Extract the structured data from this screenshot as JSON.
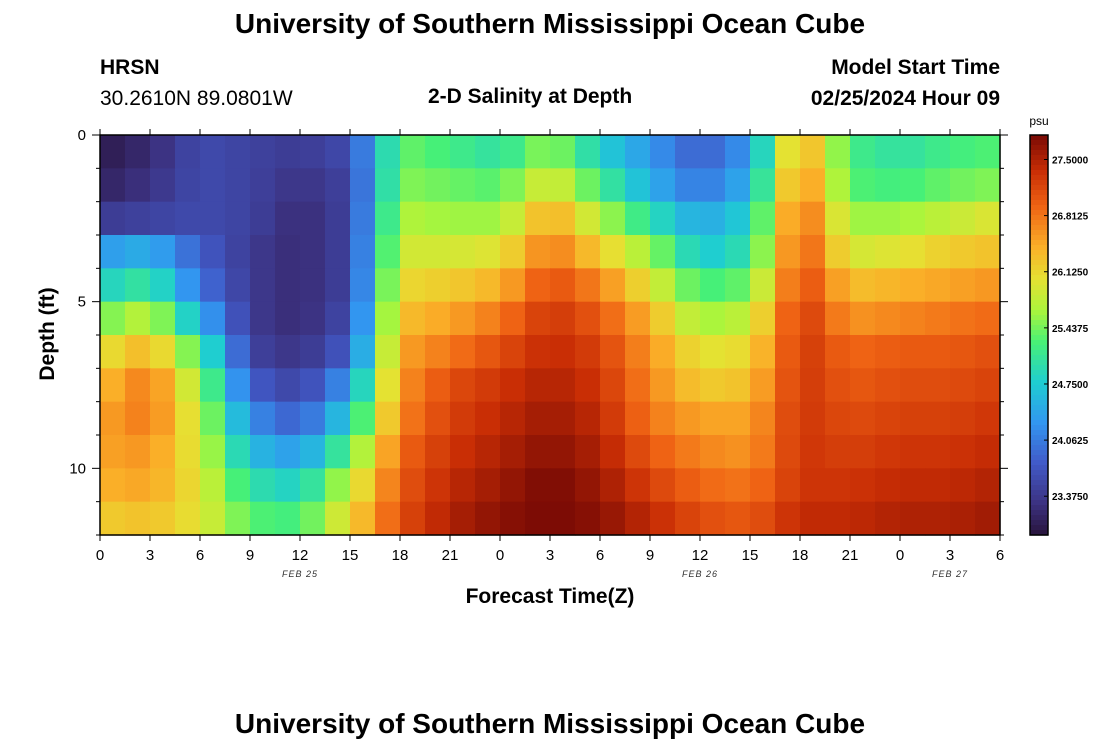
{
  "page": {
    "title": "University of Southern Mississippi Ocean Cube",
    "title_repeat": "University of Southern Mississippi Ocean Cube",
    "station": "HRSN",
    "coords": "30.2610N  89.0801W",
    "plot_title": "2-D Salinity at Depth",
    "model_start_label": "Model Start Time",
    "model_start_value": "02/25/2024 Hour 09"
  },
  "chart_data": {
    "type": "heatmap",
    "title": "2-D Salinity at Depth",
    "xlabel": "Forecast Time(Z)",
    "ylabel": "Depth (ft)",
    "x_hours_range": [
      0,
      54
    ],
    "x_tick_labels": [
      "0",
      "3",
      "6",
      "9",
      "12",
      "15",
      "18",
      "21",
      "0",
      "3",
      "6",
      "9",
      "12",
      "15",
      "18",
      "21",
      "0",
      "3",
      "6"
    ],
    "date_labels": [
      {
        "text": "FEB 25",
        "hour": 12
      },
      {
        "text": "FEB 26",
        "hour": 36
      },
      {
        "text": "FEB 27",
        "hour": 51
      }
    ],
    "y_depth_range": [
      0,
      12
    ],
    "y_tick_labels": [
      {
        "text": "0",
        "depth": 0
      },
      {
        "text": "5",
        "depth": 5
      },
      {
        "text": "10",
        "depth": 10
      }
    ],
    "y_minor_ticks": [
      1,
      2,
      3,
      4,
      6,
      7,
      8,
      9,
      11,
      12
    ],
    "colorbar": {
      "unit": "psu",
      "min": 22.9,
      "max": 27.8,
      "labels": [
        "27.5000",
        "26.8125",
        "26.1250",
        "25.4375",
        "24.7500",
        "24.0625",
        "23.3750"
      ],
      "label_values": [
        27.5,
        26.8125,
        26.125,
        25.4375,
        24.75,
        24.0625,
        23.375
      ]
    },
    "depth_levels": [
      0.5,
      1.5,
      2.5,
      3.5,
      4.5,
      5.5,
      6.5,
      7.5,
      8.5,
      9.5,
      10.5,
      11.5
    ],
    "time_hours": [
      0,
      3,
      6,
      9,
      12,
      15,
      18,
      21,
      24,
      27,
      30,
      33,
      36,
      39,
      42,
      45,
      48,
      51,
      54
    ],
    "salinity_psu": [
      [
        23.0,
        23.2,
        23.6,
        23.5,
        23.4,
        23.6,
        25.4,
        25.2,
        25.0,
        25.6,
        24.8,
        24.3,
        23.8,
        24.3,
        26.6,
        25.2,
        25.0,
        25.2,
        25.3
      ],
      [
        23.1,
        23.3,
        23.6,
        23.5,
        23.3,
        23.5,
        25.5,
        25.4,
        25.3,
        26.0,
        25.2,
        24.5,
        24.0,
        24.5,
        26.8,
        25.3,
        25.2,
        25.4,
        25.5
      ],
      [
        23.4,
        23.5,
        23.6,
        23.5,
        23.2,
        23.5,
        25.7,
        25.6,
        25.6,
        26.5,
        25.7,
        25.0,
        24.4,
        24.8,
        27.0,
        25.6,
        25.6,
        25.8,
        26.0
      ],
      [
        24.3,
        24.5,
        23.8,
        23.4,
        23.2,
        23.5,
        25.9,
        25.9,
        26.0,
        26.8,
        26.2,
        25.6,
        24.7,
        25.0,
        27.1,
        25.9,
        26.0,
        26.2,
        26.3
      ],
      [
        24.8,
        25.1,
        24.0,
        23.4,
        23.2,
        23.5,
        26.1,
        26.2,
        26.4,
        27.1,
        26.7,
        26.0,
        25.2,
        25.4,
        27.2,
        26.3,
        26.4,
        26.5,
        26.6
      ],
      [
        25.4,
        25.8,
        24.5,
        23.4,
        23.2,
        23.6,
        26.3,
        26.5,
        26.8,
        27.3,
        27.0,
        26.4,
        25.6,
        25.8,
        27.3,
        26.6,
        26.7,
        26.8,
        26.9
      ],
      [
        26.0,
        26.4,
        25.2,
        23.5,
        23.3,
        23.8,
        26.5,
        26.8,
        27.1,
        27.4,
        27.2,
        26.6,
        26.0,
        26.1,
        27.3,
        26.9,
        27.0,
        27.0,
        27.1
      ],
      [
        26.3,
        26.8,
        25.6,
        23.8,
        23.5,
        24.3,
        26.6,
        27.1,
        27.3,
        27.5,
        27.3,
        26.7,
        26.2,
        26.3,
        27.3,
        27.0,
        27.1,
        27.1,
        27.2
      ],
      [
        26.5,
        26.8,
        25.8,
        24.2,
        23.8,
        24.8,
        26.7,
        27.2,
        27.4,
        27.6,
        27.4,
        26.8,
        26.5,
        26.5,
        27.3,
        27.1,
        27.2,
        27.2,
        27.3
      ],
      [
        26.5,
        26.6,
        25.9,
        24.6,
        24.3,
        25.3,
        26.9,
        27.3,
        27.5,
        27.7,
        27.5,
        27.0,
        26.7,
        26.6,
        27.3,
        27.2,
        27.3,
        27.3,
        27.4
      ],
      [
        26.4,
        26.5,
        26.0,
        25.0,
        24.8,
        25.8,
        27.0,
        27.4,
        27.6,
        27.8,
        27.6,
        27.2,
        26.9,
        26.8,
        27.3,
        27.3,
        27.4,
        27.4,
        27.5
      ],
      [
        26.2,
        26.3,
        26.0,
        25.3,
        25.2,
        26.1,
        27.1,
        27.5,
        27.7,
        27.8,
        27.7,
        27.4,
        27.1,
        27.0,
        27.4,
        27.4,
        27.5,
        27.5,
        27.6
      ]
    ]
  }
}
